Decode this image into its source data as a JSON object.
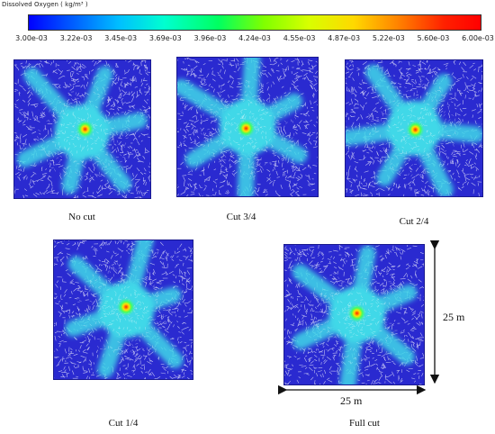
{
  "colorbar": {
    "title": "Dissolved Oxygen ( kg/m³ )",
    "ticks": [
      "3.00e-03",
      "3.22e-03",
      "3.45e-03",
      "3.69e-03",
      "3.96e-03",
      "4.24e-03",
      "4.55e-03",
      "4.87e-03",
      "5.22e-03",
      "5.60e-03",
      "6.00e-03"
    ]
  },
  "panels": [
    {
      "label": "No cut"
    },
    {
      "label": "Cut 3/4"
    },
    {
      "label": "Cut 2/4"
    },
    {
      "label": "Cut 1/4"
    },
    {
      "label": "Full cut"
    }
  ],
  "dimensions": {
    "vertical": "25 m",
    "horizontal": "25 m"
  },
  "colors": {
    "background": "#2a2ad0",
    "plume": "#40d8e8",
    "core": "#ff2000"
  }
}
